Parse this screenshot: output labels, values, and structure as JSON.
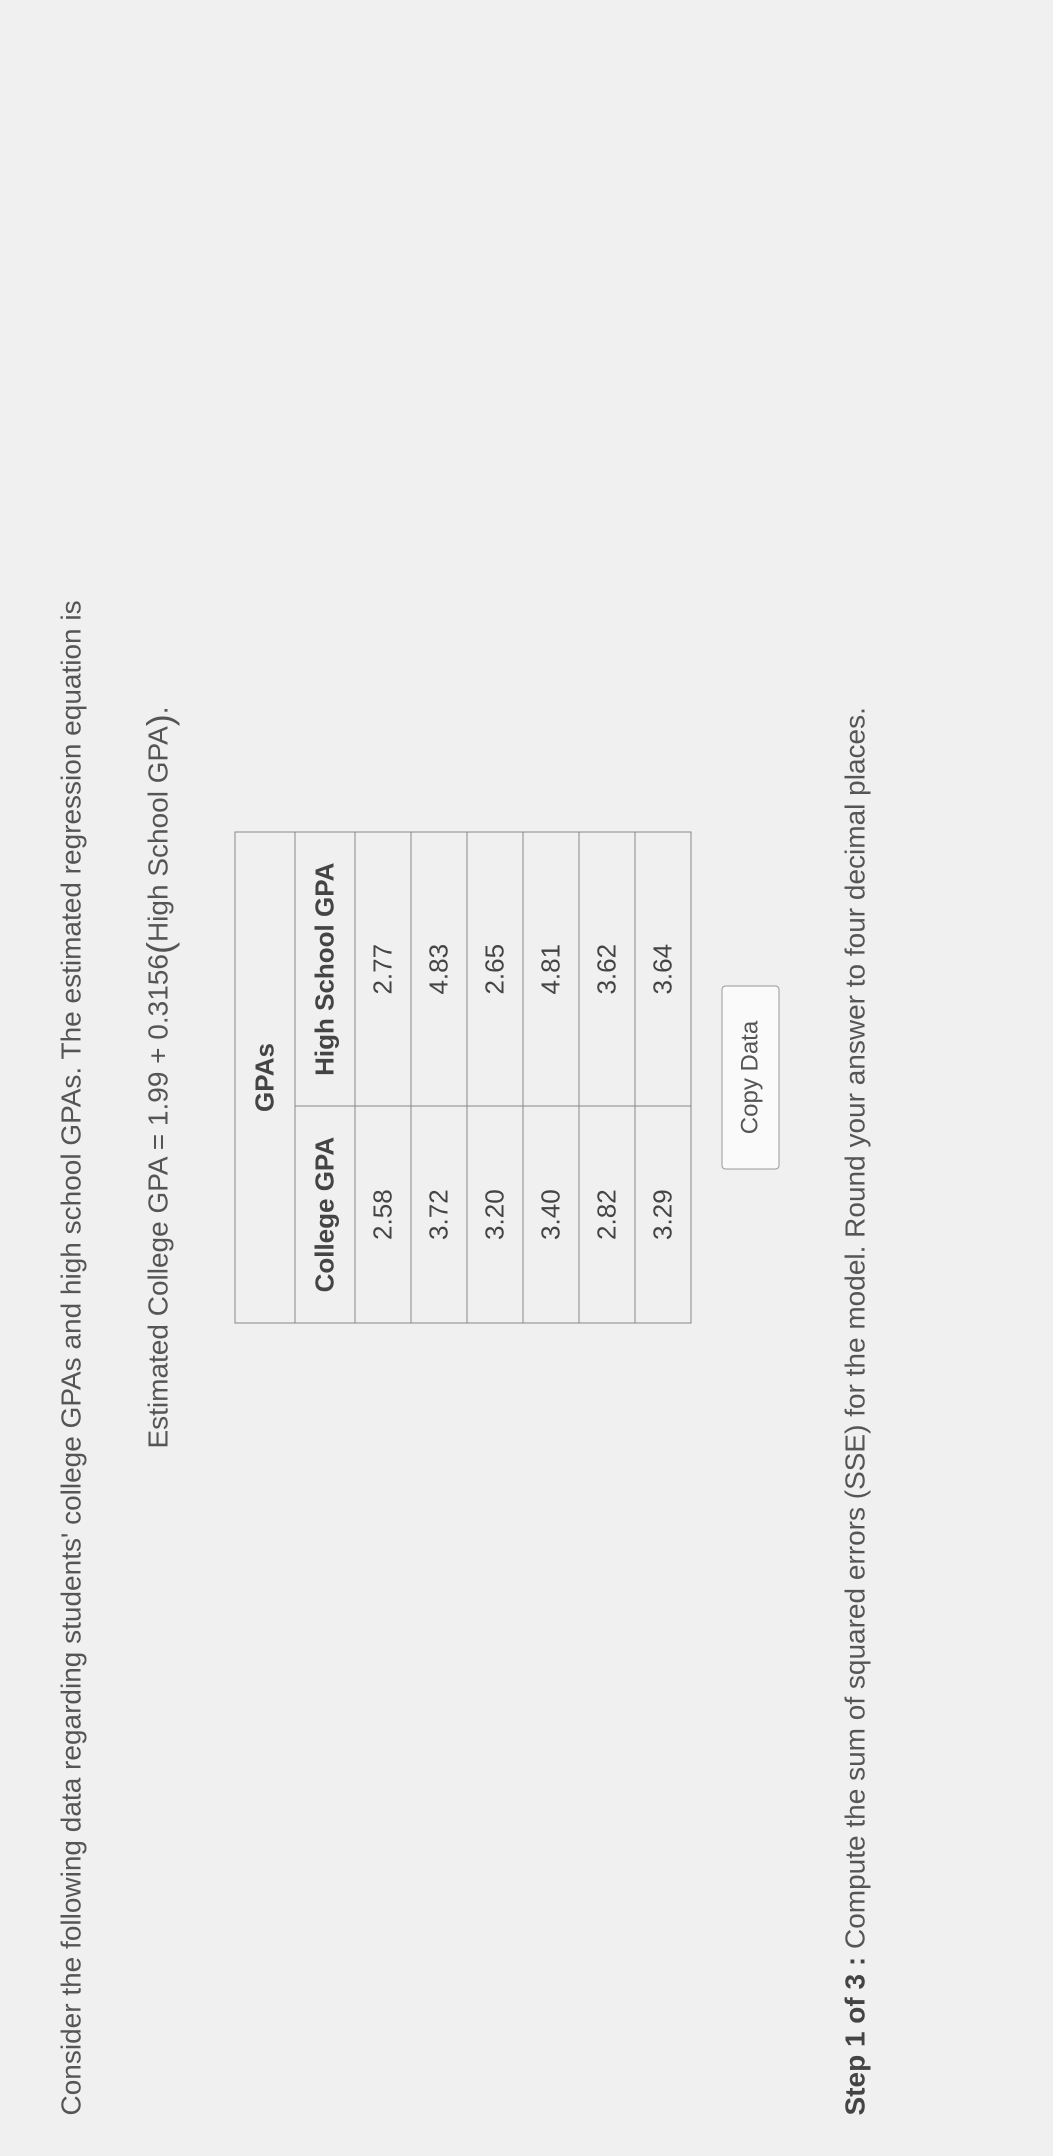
{
  "intro": "Consider the following data regarding students' college GPAs and high school GPAs. The estimated regression equation is",
  "equation": {
    "lhs": "Estimated College GPA",
    "eq": "=",
    "intercept": "1.99",
    "plus": "+",
    "slope": "0.3156",
    "open_paren": "(",
    "var": "High School GPA",
    "close_paren": ")",
    "period": "."
  },
  "table": {
    "title": "GPAs",
    "col1": "College GPA",
    "col2": "High School GPA",
    "rows": [
      {
        "c1": "2.58",
        "c2": "2.77"
      },
      {
        "c1": "3.72",
        "c2": "4.83"
      },
      {
        "c1": "3.20",
        "c2": "2.65"
      },
      {
        "c1": "3.40",
        "c2": "4.81"
      },
      {
        "c1": "2.82",
        "c2": "3.62"
      },
      {
        "c1": "3.29",
        "c2": "3.64"
      }
    ]
  },
  "copy_button": "Copy Data",
  "step": {
    "label": "Step 1 of 3 :",
    "text": " Compute the sum of squared errors (SSE) for the model. Round your answer to four decimal places."
  }
}
